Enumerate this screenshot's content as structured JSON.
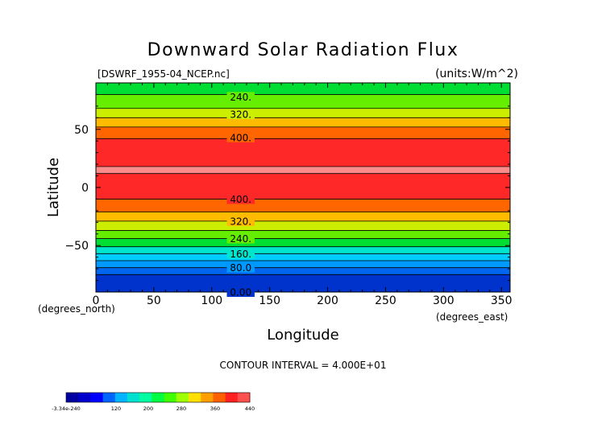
{
  "chart_data": {
    "type": "heatmap",
    "title": "Downward Solar Radiation Flux",
    "subtitle_left": "[DSWRF_1955-04_NCEP.nc]",
    "subtitle_right": "(units:W/m^2)",
    "xlabel": "Longitude",
    "ylabel": "Latitude",
    "x_unit_label": "(degrees_east)",
    "y_unit_label": "(degrees_north)",
    "xlim": [
      0,
      357.5
    ],
    "ylim": [
      -90,
      90
    ],
    "x_ticks": [
      0,
      50,
      100,
      150,
      200,
      250,
      300,
      350
    ],
    "y_ticks": [
      -50,
      0,
      50
    ],
    "contour_interval_text": "CONTOUR INTERVAL = 4.000E+01",
    "contour_levels": [
      0,
      40,
      80,
      120,
      160,
      200,
      240,
      280,
      320,
      360,
      400,
      440
    ],
    "contour_labels": [
      {
        "text": "240.",
        "lat": 78
      },
      {
        "text": "320.",
        "lat": 63
      },
      {
        "text": "400.",
        "lat": 43
      },
      {
        "text": "400.",
        "lat": -10
      },
      {
        "text": "320.",
        "lat": -29
      },
      {
        "text": "240.",
        "lat": -44
      },
      {
        "text": "160.",
        "lat": -57
      },
      {
        "text": "80.0",
        "lat": -69
      },
      {
        "text": "0.00",
        "lat": -90
      }
    ],
    "bands": [
      {
        "lat0": 90,
        "lat1": 80,
        "value": 220
      },
      {
        "lat0": 80,
        "lat1": 68,
        "value": 260
      },
      {
        "lat0": 68,
        "lat1": 60,
        "value": 300
      },
      {
        "lat0": 60,
        "lat1": 52,
        "value": 340
      },
      {
        "lat0": 52,
        "lat1": 42,
        "value": 380
      },
      {
        "lat0": 42,
        "lat1": 18,
        "value": 420
      },
      {
        "lat0": 18,
        "lat1": 12,
        "value": 445
      },
      {
        "lat0": 12,
        "lat1": -10,
        "value": 420
      },
      {
        "lat0": -10,
        "lat1": -21,
        "value": 380
      },
      {
        "lat0": -21,
        "lat1": -29,
        "value": 340
      },
      {
        "lat0": -29,
        "lat1": -37,
        "value": 300
      },
      {
        "lat0": -37,
        "lat1": -44,
        "value": 260
      },
      {
        "lat0": -44,
        "lat1": -51,
        "value": 220
      },
      {
        "lat0": -51,
        "lat1": -57,
        "value": 180
      },
      {
        "lat0": -57,
        "lat1": -63,
        "value": 140
      },
      {
        "lat0": -63,
        "lat1": -69,
        "value": 100
      },
      {
        "lat0": -69,
        "lat1": -75,
        "value": 60
      },
      {
        "lat0": -75,
        "lat1": -90,
        "value": 20
      }
    ],
    "colorbar": {
      "tick_labels": [
        "-3.34e-240",
        "120",
        "200",
        "280",
        "360",
        "440"
      ],
      "colors": [
        "#0000a0",
        "#0000cd",
        "#0000ff",
        "#0064ff",
        "#00b4ff",
        "#00e0d0",
        "#00ffa0",
        "#00ff40",
        "#40ff00",
        "#a0ff00",
        "#ffe000",
        "#ffa000",
        "#ff6000",
        "#ff2020",
        "#ff5050"
      ]
    },
    "band_colors": {
      "20": "#0033cc",
      "60": "#0066ee",
      "100": "#0099ff",
      "140": "#00ccff",
      "180": "#00e6cc",
      "220": "#00dd33",
      "260": "#66ee00",
      "300": "#ccee00",
      "340": "#ffbb00",
      "380": "#ff6600",
      "420": "#ff2828",
      "445": "#ff8c8c"
    }
  }
}
